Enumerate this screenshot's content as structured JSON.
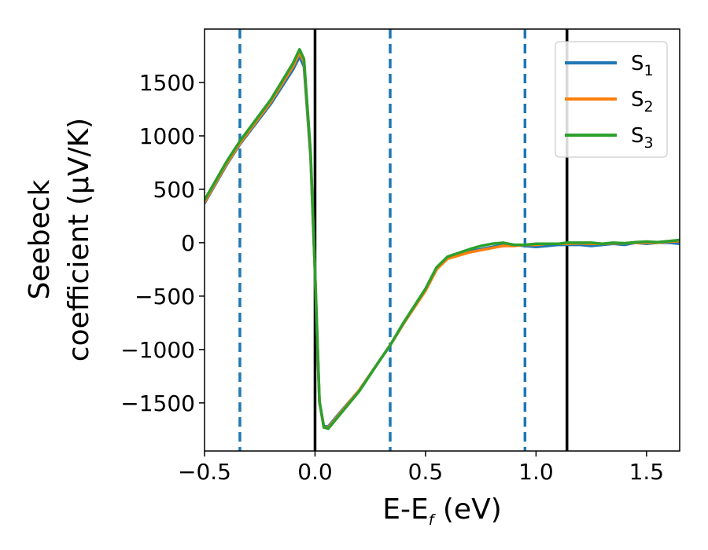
{
  "chart_data": {
    "type": "line",
    "xlabel": {
      "main": "E-E",
      "sub": "f",
      "tail": " (eV)"
    },
    "ylabel": {
      "line1": "Seebeck",
      "line2": "coefficient  (μV/K)"
    },
    "xlim": [
      -0.5,
      1.65
    ],
    "ylim": [
      -1950,
      2000
    ],
    "x_ticks": [
      {
        "value": -0.5,
        "label": "−0.5"
      },
      {
        "value": 0.0,
        "label": "0.0"
      },
      {
        "value": 0.5,
        "label": "0.5"
      },
      {
        "value": 1.0,
        "label": "1.0"
      },
      {
        "value": 1.5,
        "label": "1.5"
      }
    ],
    "y_ticks": [
      {
        "value": 1500,
        "label": "1500"
      },
      {
        "value": 1000,
        "label": "1000"
      },
      {
        "value": 500,
        "label": "500"
      },
      {
        "value": 0,
        "label": "0"
      },
      {
        "value": -500,
        "label": "−500"
      },
      {
        "value": -1000,
        "label": "−1000"
      },
      {
        "value": -1500,
        "label": "−1500"
      }
    ],
    "vlines": [
      {
        "x": -0.34,
        "style": "dashed",
        "color": "#1f77b4"
      },
      {
        "x": 0.0,
        "style": "solid",
        "color": "#000000"
      },
      {
        "x": 0.34,
        "style": "dashed",
        "color": "#1f77b4"
      },
      {
        "x": 0.95,
        "style": "dashed",
        "color": "#1f77b4"
      },
      {
        "x": 1.14,
        "style": "solid",
        "color": "#000000"
      }
    ],
    "legend": {
      "position": "top-right"
    },
    "series": [
      {
        "name": "S",
        "sub": "1",
        "color": "#1f77b4",
        "points": [
          [
            -0.5,
            370
          ],
          [
            -0.4,
            730
          ],
          [
            -0.34,
            920
          ],
          [
            -0.2,
            1300
          ],
          [
            -0.1,
            1620
          ],
          [
            -0.07,
            1740
          ],
          [
            -0.05,
            1650
          ],
          [
            -0.02,
            800
          ],
          [
            0.0,
            -300
          ],
          [
            0.02,
            -1500
          ],
          [
            0.04,
            -1720
          ],
          [
            0.06,
            -1720
          ],
          [
            0.1,
            -1620
          ],
          [
            0.2,
            -1380
          ],
          [
            0.3,
            -1080
          ],
          [
            0.34,
            -960
          ],
          [
            0.4,
            -760
          ],
          [
            0.5,
            -440
          ],
          [
            0.55,
            -240
          ],
          [
            0.6,
            -140
          ],
          [
            0.7,
            -80
          ],
          [
            0.8,
            -40
          ],
          [
            0.85,
            -20
          ],
          [
            0.9,
            -20
          ],
          [
            0.95,
            -30
          ],
          [
            1.0,
            -40
          ],
          [
            1.05,
            -30
          ],
          [
            1.1,
            -20
          ],
          [
            1.14,
            -20
          ],
          [
            1.2,
            -20
          ],
          [
            1.25,
            -30
          ],
          [
            1.3,
            -20
          ],
          [
            1.35,
            -10
          ],
          [
            1.4,
            -20
          ],
          [
            1.45,
            0
          ],
          [
            1.5,
            -10
          ],
          [
            1.55,
            0
          ],
          [
            1.6,
            0
          ],
          [
            1.65,
            -10
          ]
        ]
      },
      {
        "name": "S",
        "sub": "2",
        "color": "#ff7f0e",
        "points": [
          [
            -0.5,
            380
          ],
          [
            -0.4,
            740
          ],
          [
            -0.34,
            930
          ],
          [
            -0.2,
            1320
          ],
          [
            -0.1,
            1650
          ],
          [
            -0.07,
            1780
          ],
          [
            -0.05,
            1690
          ],
          [
            -0.02,
            820
          ],
          [
            0.0,
            -290
          ],
          [
            0.02,
            -1490
          ],
          [
            0.04,
            -1730
          ],
          [
            0.06,
            -1730
          ],
          [
            0.1,
            -1630
          ],
          [
            0.2,
            -1380
          ],
          [
            0.3,
            -1080
          ],
          [
            0.34,
            -960
          ],
          [
            0.4,
            -760
          ],
          [
            0.5,
            -450
          ],
          [
            0.55,
            -250
          ],
          [
            0.6,
            -150
          ],
          [
            0.7,
            -90
          ],
          [
            0.8,
            -50
          ],
          [
            0.85,
            -30
          ],
          [
            0.9,
            -30
          ],
          [
            0.95,
            -20
          ],
          [
            1.0,
            -20
          ],
          [
            1.05,
            -10
          ],
          [
            1.1,
            -10
          ],
          [
            1.14,
            -10
          ],
          [
            1.2,
            -5
          ],
          [
            1.25,
            -10
          ],
          [
            1.3,
            -10
          ],
          [
            1.35,
            -5
          ],
          [
            1.4,
            -5
          ],
          [
            1.45,
            0
          ],
          [
            1.5,
            0
          ],
          [
            1.55,
            0
          ],
          [
            1.6,
            10
          ],
          [
            1.65,
            15
          ]
        ]
      },
      {
        "name": "S",
        "sub": "3",
        "color": "#2ca02c",
        "points": [
          [
            -0.5,
            400
          ],
          [
            -0.4,
            760
          ],
          [
            -0.34,
            950
          ],
          [
            -0.2,
            1340
          ],
          [
            -0.1,
            1680
          ],
          [
            -0.07,
            1810
          ],
          [
            -0.05,
            1720
          ],
          [
            -0.02,
            850
          ],
          [
            0.0,
            -280
          ],
          [
            0.02,
            -1480
          ],
          [
            0.04,
            -1730
          ],
          [
            0.06,
            -1740
          ],
          [
            0.1,
            -1640
          ],
          [
            0.2,
            -1390
          ],
          [
            0.3,
            -1080
          ],
          [
            0.34,
            -960
          ],
          [
            0.4,
            -750
          ],
          [
            0.5,
            -430
          ],
          [
            0.55,
            -230
          ],
          [
            0.6,
            -130
          ],
          [
            0.7,
            -60
          ],
          [
            0.75,
            -30
          ],
          [
            0.8,
            -10
          ],
          [
            0.85,
            0
          ],
          [
            0.9,
            -20
          ],
          [
            0.95,
            -20
          ],
          [
            1.0,
            -10
          ],
          [
            1.05,
            -10
          ],
          [
            1.1,
            -10
          ],
          [
            1.14,
            0
          ],
          [
            1.2,
            0
          ],
          [
            1.25,
            0
          ],
          [
            1.3,
            -10
          ],
          [
            1.35,
            0
          ],
          [
            1.4,
            -5
          ],
          [
            1.45,
            5
          ],
          [
            1.5,
            10
          ],
          [
            1.55,
            5
          ],
          [
            1.6,
            15
          ],
          [
            1.65,
            25
          ]
        ]
      }
    ]
  }
}
